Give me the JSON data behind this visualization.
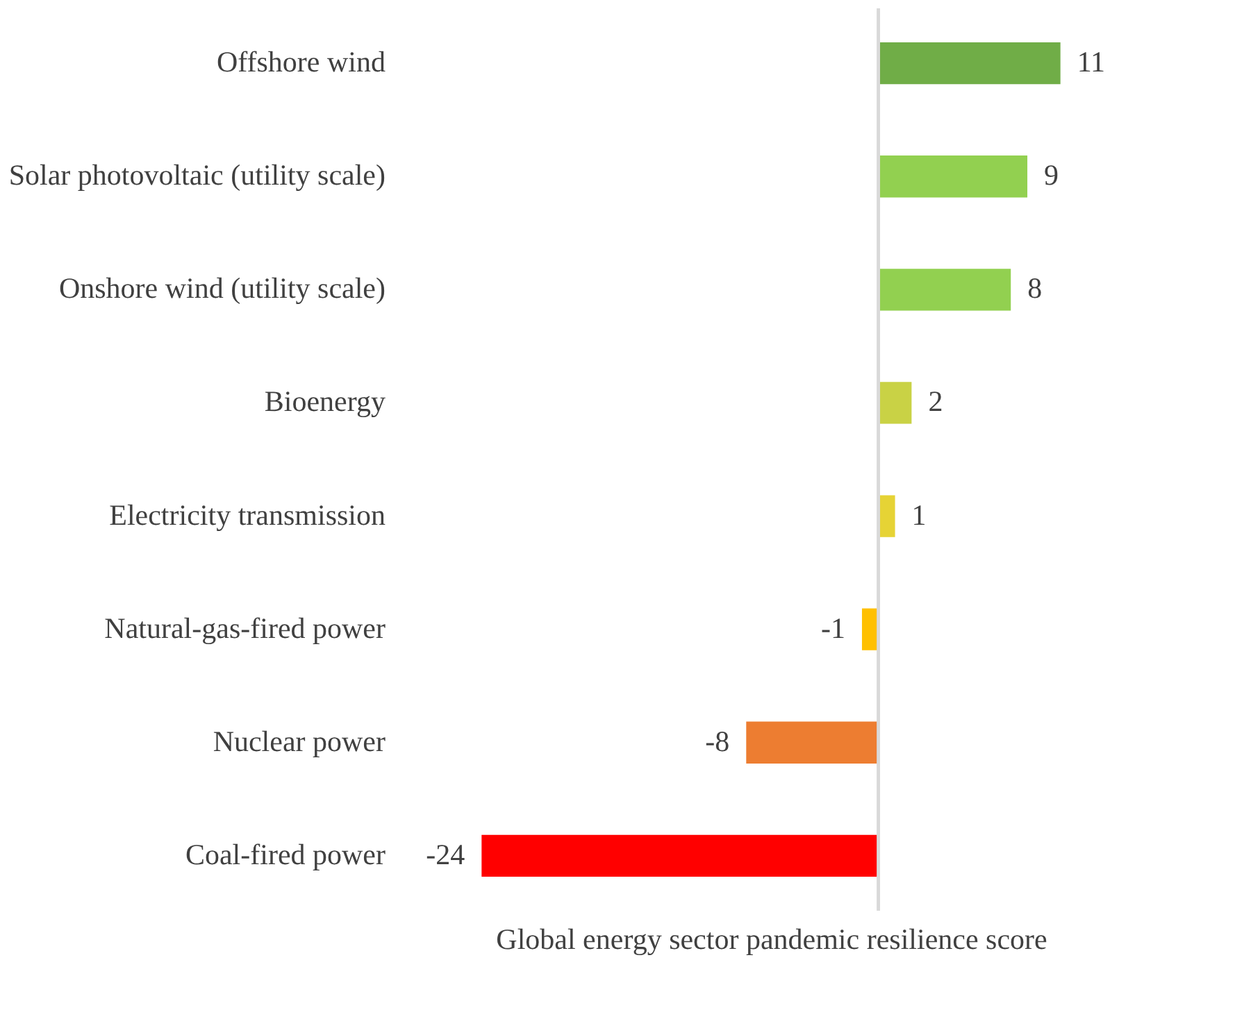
{
  "chart_data": {
    "type": "bar",
    "orientation": "horizontal",
    "data_labels": true,
    "xlabel": "Global energy sector pandemic resilience score",
    "categories": [
      "Offshore wind",
      "Solar photovoltaic (utility scale)",
      "Onshore wind (utility scale)",
      "Bioenergy",
      "Electricity transmission",
      "Natural-gas-fired power",
      "Nuclear power",
      "Coal-fired power"
    ],
    "values": [
      11,
      9,
      8,
      2,
      1,
      -1,
      -8,
      -24
    ],
    "colors": [
      "#70ad47",
      "#92d050",
      "#92d050",
      "#c9d245",
      "#e6d335",
      "#ffc000",
      "#ed7d31",
      "#ff0000"
    ]
  }
}
